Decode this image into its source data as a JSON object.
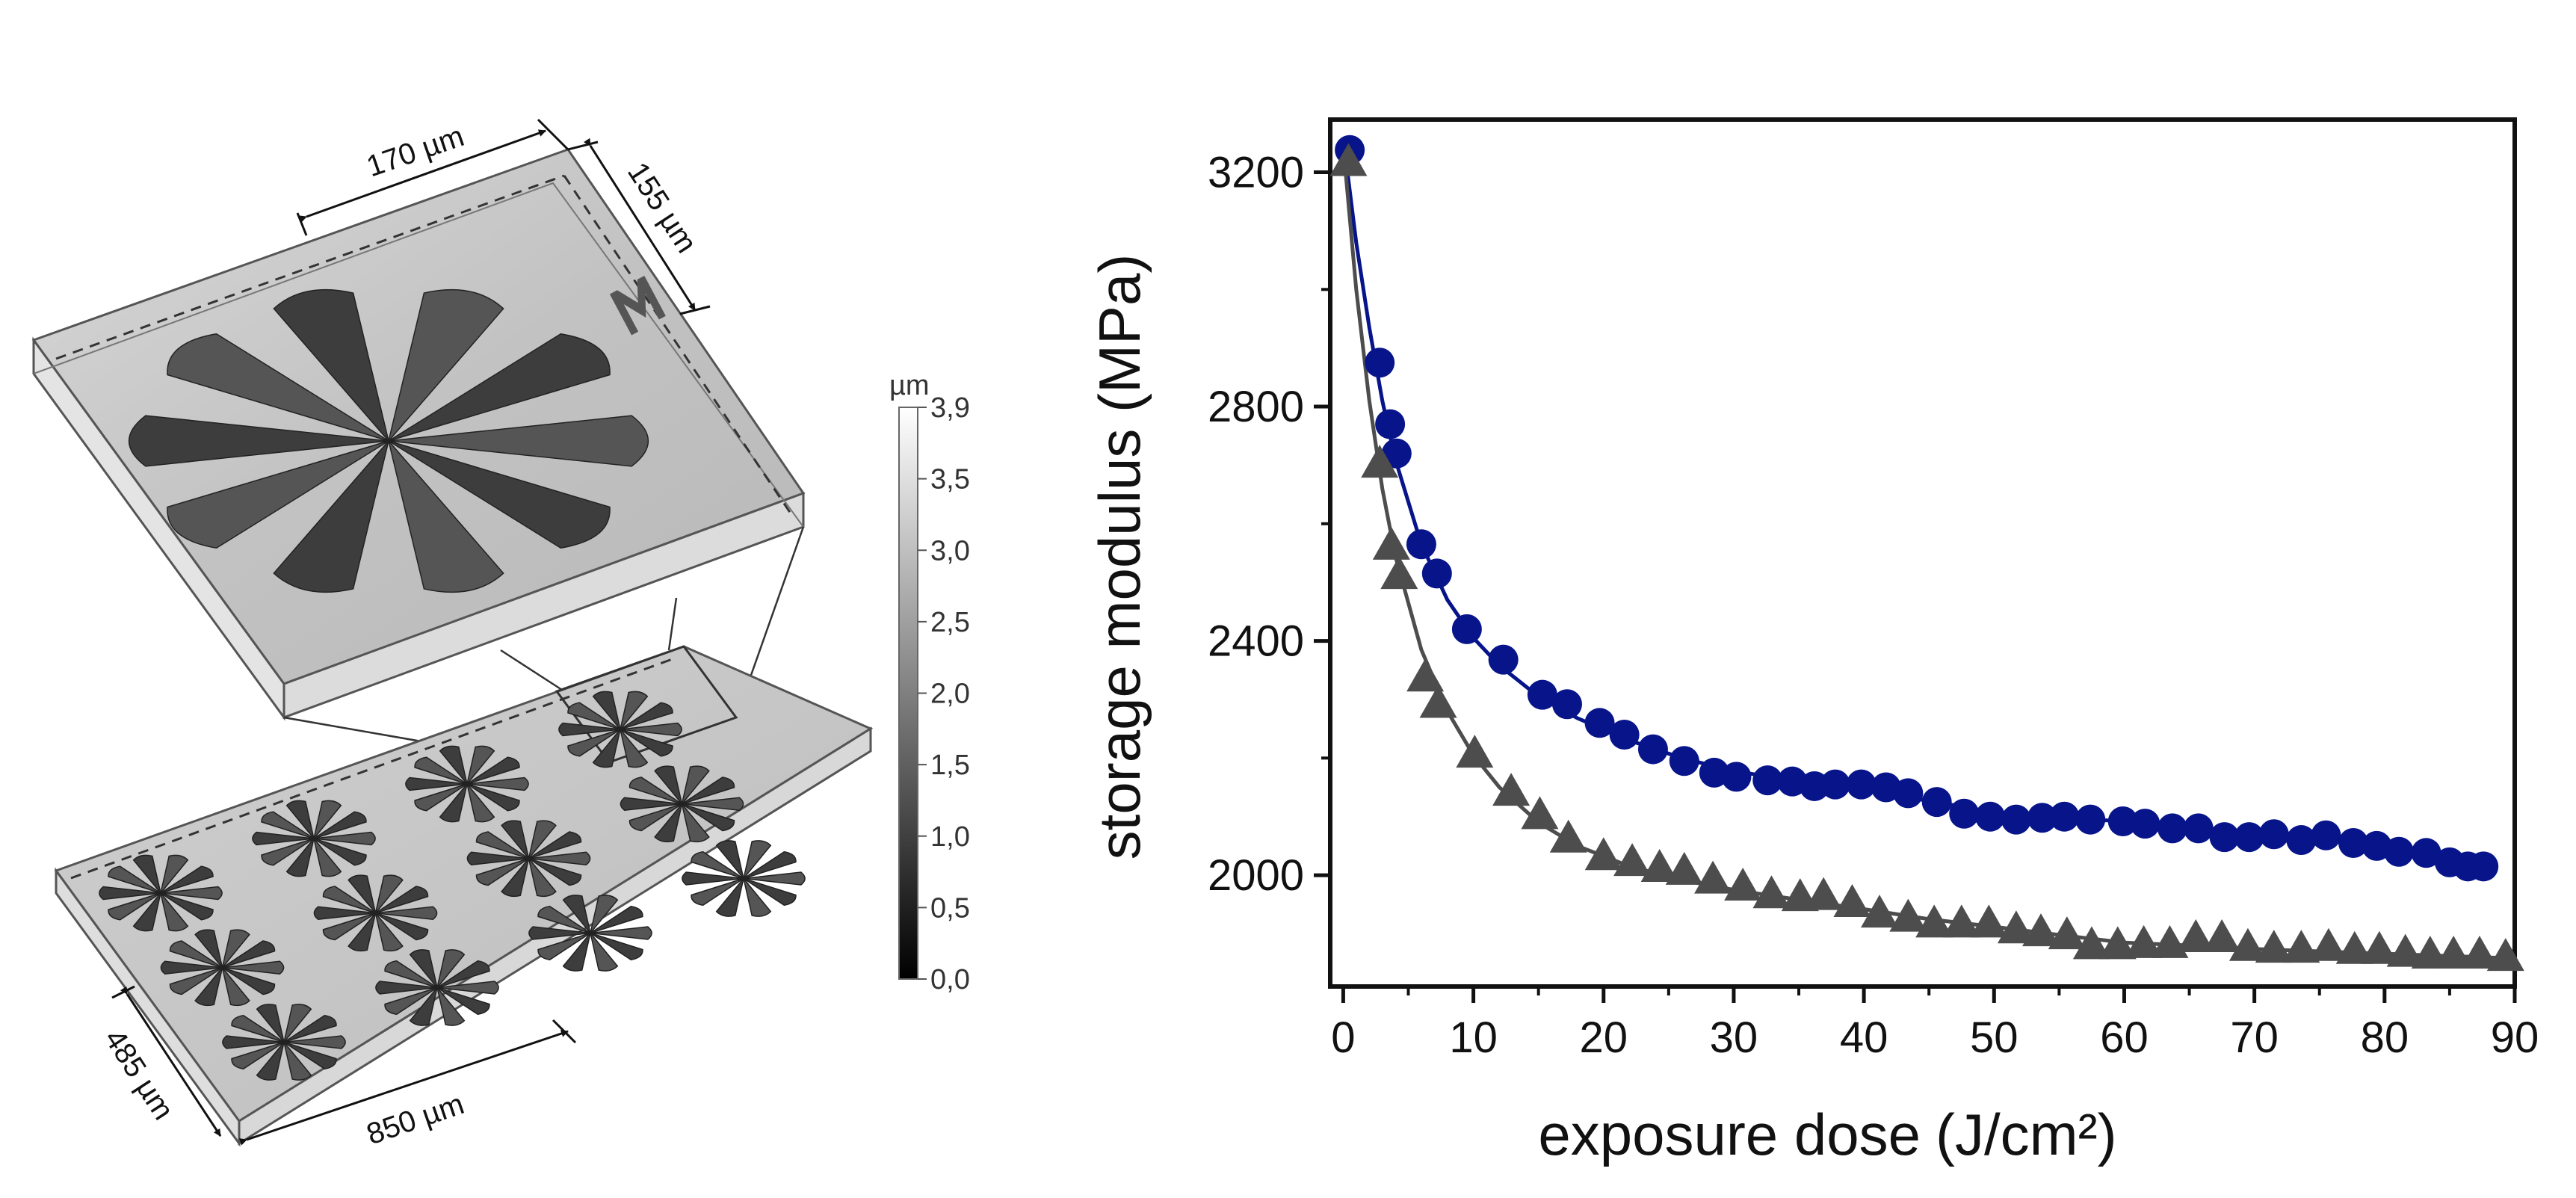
{
  "figure": {
    "dimensions": {
      "top_width": "170 µm",
      "top_depth": "155 µm",
      "array_width": "850 µm",
      "array_depth": "485 µm"
    },
    "logo_text": "Ʃ",
    "colorbar": {
      "unit": "µm",
      "ticks": [
        "3,9",
        "3,5",
        "3,0",
        "2,5",
        "2,0",
        "1,5",
        "1,0",
        "0,5",
        "0,0"
      ]
    }
  },
  "chart_data": {
    "type": "scatter",
    "title": "",
    "xlabel": "exposure dose",
    "xlabel_unit": "(J/cm²)",
    "ylabel": "storage modulus (MPa)",
    "xlim": [
      -1,
      90
    ],
    "ylim": [
      1810,
      3290
    ],
    "xticks": [
      0,
      10,
      20,
      30,
      40,
      50,
      60,
      70,
      80,
      90
    ],
    "yticks": [
      2000,
      2400,
      2800,
      3200
    ],
    "series": [
      {
        "name": "circles",
        "marker": "circle",
        "color": "#07148a",
        "points": [
          [
            0.5,
            3238
          ],
          [
            2.8,
            2875
          ],
          [
            3.6,
            2770
          ],
          [
            4.1,
            2720
          ],
          [
            6.0,
            2565
          ],
          [
            7.2,
            2515
          ],
          [
            9.5,
            2420
          ],
          [
            12.3,
            2368
          ],
          [
            15.3,
            2308
          ],
          [
            17.2,
            2292
          ],
          [
            19.7,
            2260
          ],
          [
            21.6,
            2240
          ],
          [
            23.8,
            2215
          ],
          [
            26.2,
            2195
          ],
          [
            28.5,
            2175
          ],
          [
            30.2,
            2168
          ],
          [
            32.6,
            2162
          ],
          [
            34.5,
            2160
          ],
          [
            36.2,
            2152
          ],
          [
            37.8,
            2155
          ],
          [
            39.8,
            2155
          ],
          [
            41.7,
            2150
          ],
          [
            43.4,
            2140
          ],
          [
            45.6,
            2125
          ],
          [
            47.7,
            2105
          ],
          [
            49.7,
            2100
          ],
          [
            51.7,
            2095
          ],
          [
            53.7,
            2098
          ],
          [
            55.4,
            2100
          ],
          [
            57.4,
            2095
          ],
          [
            59.9,
            2092
          ],
          [
            61.6,
            2088
          ],
          [
            63.7,
            2080
          ],
          [
            65.7,
            2080
          ],
          [
            67.7,
            2065
          ],
          [
            69.6,
            2065
          ],
          [
            71.5,
            2070
          ],
          [
            73.6,
            2060
          ],
          [
            75.5,
            2068
          ],
          [
            77.6,
            2055
          ],
          [
            79.4,
            2050
          ],
          [
            81.1,
            2040
          ],
          [
            83.2,
            2038
          ],
          [
            85.0,
            2022
          ],
          [
            86.4,
            2015
          ],
          [
            87.6,
            2015
          ]
        ],
        "fit": [
          [
            0.1,
            3240
          ],
          [
            1,
            3080
          ],
          [
            2,
            2935
          ],
          [
            3,
            2810
          ],
          [
            4,
            2710
          ],
          [
            6,
            2565
          ],
          [
            8,
            2470
          ],
          [
            10,
            2405
          ],
          [
            12,
            2358
          ],
          [
            15,
            2305
          ],
          [
            18,
            2268
          ],
          [
            22,
            2230
          ],
          [
            26,
            2200
          ],
          [
            30,
            2178
          ],
          [
            35,
            2160
          ],
          [
            40,
            2145
          ],
          [
            45,
            2127
          ],
          [
            50,
            2107
          ],
          [
            55,
            2098
          ],
          [
            60,
            2092
          ],
          [
            65,
            2082
          ],
          [
            70,
            2068
          ],
          [
            75,
            2061
          ],
          [
            80,
            2048
          ],
          [
            85,
            2028
          ],
          [
            88,
            2015
          ]
        ]
      },
      {
        "name": "triangles",
        "marker": "triangle",
        "color": "#4d4d4d",
        "points": [
          [
            0.4,
            3215
          ],
          [
            2.8,
            2700
          ],
          [
            3.7,
            2560
          ],
          [
            4.3,
            2510
          ],
          [
            6.3,
            2335
          ],
          [
            7.3,
            2290
          ],
          [
            10.1,
            2205
          ],
          [
            12.9,
            2140
          ],
          [
            15.1,
            2100
          ],
          [
            17.3,
            2060
          ],
          [
            20.0,
            2030
          ],
          [
            22.2,
            2020
          ],
          [
            24.3,
            2010
          ],
          [
            26.2,
            2005
          ],
          [
            28.4,
            1990
          ],
          [
            30.7,
            1978
          ],
          [
            32.9,
            1965
          ],
          [
            35.1,
            1960
          ],
          [
            36.9,
            1962
          ],
          [
            39.1,
            1950
          ],
          [
            41.2,
            1932
          ],
          [
            43.4,
            1925
          ],
          [
            45.4,
            1915
          ],
          [
            47.5,
            1915
          ],
          [
            49.6,
            1915
          ],
          [
            51.7,
            1905
          ],
          [
            53.6,
            1900
          ],
          [
            55.6,
            1895
          ],
          [
            57.5,
            1878
          ],
          [
            59.5,
            1878
          ],
          [
            61.5,
            1880
          ],
          [
            63.5,
            1880
          ],
          [
            65.5,
            1890
          ],
          [
            67.5,
            1890
          ],
          [
            69.5,
            1875
          ],
          [
            71.5,
            1872
          ],
          [
            73.6,
            1872
          ],
          [
            75.7,
            1875
          ],
          [
            77.7,
            1870
          ],
          [
            79.6,
            1870
          ],
          [
            81.6,
            1865
          ],
          [
            83.5,
            1862
          ],
          [
            85.3,
            1862
          ],
          [
            87.3,
            1862
          ],
          [
            89.3,
            1858
          ]
        ],
        "fit": [
          [
            0.1,
            3220
          ],
          [
            1,
            3000
          ],
          [
            2,
            2810
          ],
          [
            3,
            2660
          ],
          [
            4,
            2545
          ],
          [
            6,
            2385
          ],
          [
            8,
            2280
          ],
          [
            10,
            2205
          ],
          [
            12,
            2150
          ],
          [
            15,
            2090
          ],
          [
            18,
            2050
          ],
          [
            22,
            2015
          ],
          [
            26,
            1992
          ],
          [
            30,
            1975
          ],
          [
            35,
            1958
          ],
          [
            40,
            1942
          ],
          [
            45,
            1925
          ],
          [
            50,
            1912
          ],
          [
            55,
            1898
          ],
          [
            60,
            1885
          ],
          [
            65,
            1880
          ],
          [
            70,
            1874
          ],
          [
            75,
            1870
          ],
          [
            80,
            1866
          ],
          [
            85,
            1862
          ],
          [
            90,
            1858
          ]
        ]
      }
    ]
  }
}
